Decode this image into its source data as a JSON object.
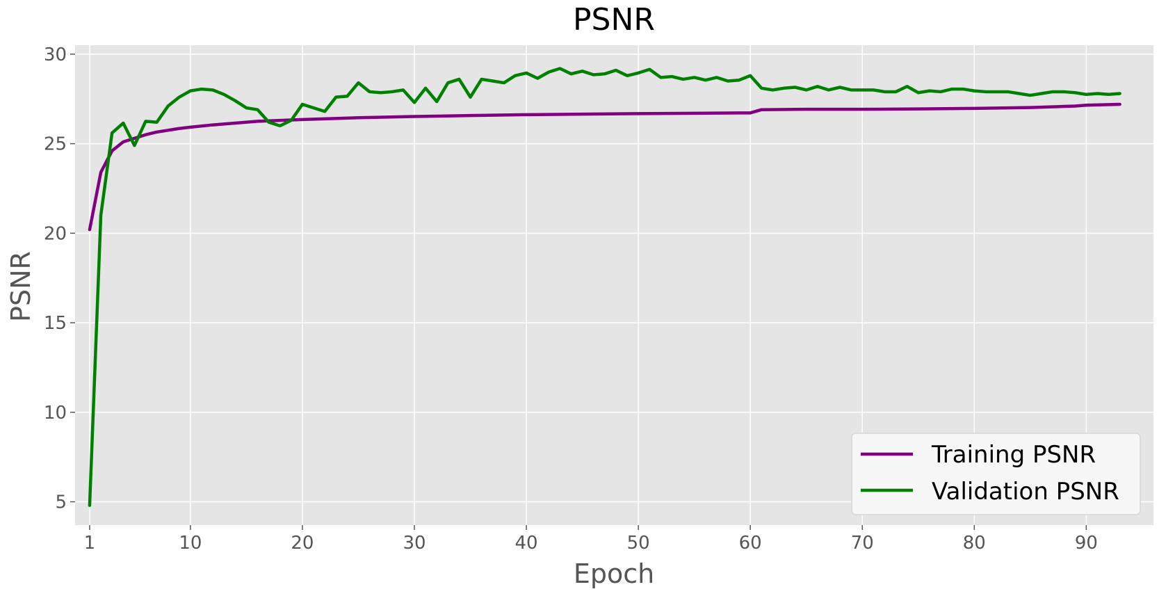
{
  "chart_data": {
    "type": "line",
    "title": "PSNR",
    "xlabel": "Epoch",
    "ylabel": "PSNR",
    "xlim": [
      -0.3,
      96
    ],
    "ylim": [
      3.7,
      30.5
    ],
    "xticks": [
      1,
      10,
      20,
      30,
      40,
      50,
      60,
      70,
      80,
      90
    ],
    "yticks": [
      5,
      10,
      15,
      20,
      25,
      30
    ],
    "grid": true,
    "background": "#e5e5e5",
    "legend_position": "bottom-right",
    "series": [
      {
        "name": "Training PSNR",
        "color": "#800080",
        "x": [
          1,
          2,
          3,
          4,
          5,
          6,
          7,
          8,
          9,
          10,
          12,
          14,
          16,
          18,
          20,
          25,
          30,
          35,
          40,
          45,
          50,
          55,
          59,
          60,
          61,
          65,
          70,
          75,
          80,
          85,
          88,
          89,
          90,
          93
        ],
        "y": [
          20.2,
          23.4,
          24.6,
          25.1,
          25.3,
          25.5,
          25.65,
          25.75,
          25.85,
          25.92,
          26.05,
          26.15,
          26.25,
          26.3,
          26.35,
          26.45,
          26.52,
          26.57,
          26.62,
          26.65,
          26.68,
          26.7,
          26.72,
          26.72,
          26.9,
          26.92,
          26.92,
          26.94,
          26.97,
          27.02,
          27.08,
          27.1,
          27.15,
          27.2
        ]
      },
      {
        "name": "Validation PSNR",
        "color": "#008000",
        "x": [
          1,
          2,
          3,
          4,
          5,
          6,
          7,
          8,
          9,
          10,
          11,
          12,
          13,
          14,
          15,
          16,
          17,
          18,
          19,
          20,
          21,
          22,
          23,
          24,
          25,
          26,
          27,
          28,
          29,
          30,
          31,
          32,
          33,
          34,
          35,
          36,
          37,
          38,
          39,
          40,
          41,
          42,
          43,
          44,
          45,
          46,
          47,
          48,
          49,
          50,
          51,
          52,
          53,
          54,
          55,
          56,
          57,
          58,
          59,
          60,
          61,
          62,
          63,
          64,
          65,
          66,
          67,
          68,
          69,
          70,
          71,
          72,
          73,
          74,
          75,
          76,
          77,
          78,
          79,
          80,
          81,
          82,
          83,
          84,
          85,
          86,
          87,
          88,
          89,
          90,
          91,
          92,
          93
        ],
        "y": [
          4.8,
          21.0,
          25.6,
          26.15,
          24.9,
          26.25,
          26.2,
          27.1,
          27.6,
          27.95,
          28.05,
          28.0,
          27.75,
          27.4,
          27.0,
          26.9,
          26.2,
          26.0,
          26.3,
          27.2,
          27.0,
          26.8,
          27.6,
          27.65,
          28.4,
          27.9,
          27.85,
          27.9,
          28.0,
          27.3,
          28.1,
          27.35,
          28.4,
          28.6,
          27.6,
          28.6,
          28.5,
          28.4,
          28.8,
          28.95,
          28.65,
          29.0,
          29.2,
          28.9,
          29.05,
          28.85,
          28.9,
          29.1,
          28.8,
          28.95,
          29.15,
          28.7,
          28.75,
          28.6,
          28.7,
          28.55,
          28.7,
          28.5,
          28.55,
          28.8,
          28.1,
          28.0,
          28.1,
          28.15,
          28.0,
          28.2,
          28.0,
          28.15,
          28.0,
          28.0,
          28.0,
          27.9,
          27.9,
          28.2,
          27.85,
          27.95,
          27.9,
          28.05,
          28.05,
          27.95,
          27.9,
          27.9,
          27.9,
          27.8,
          27.7,
          27.8,
          27.9,
          27.9,
          27.85,
          27.75,
          27.8,
          27.75,
          27.8
        ]
      }
    ]
  }
}
